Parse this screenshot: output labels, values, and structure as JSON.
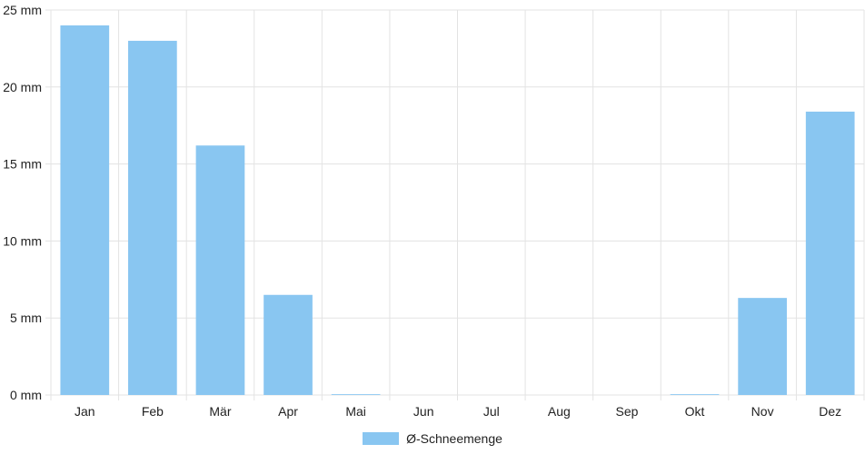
{
  "chart_data": {
    "type": "bar",
    "categories": [
      "Jan",
      "Feb",
      "Mär",
      "Apr",
      "Mai",
      "Jun",
      "Jul",
      "Aug",
      "Sep",
      "Okt",
      "Nov",
      "Dez"
    ],
    "series": [
      {
        "name": "Ø-Schneemenge",
        "values": [
          24.0,
          23.0,
          16.2,
          6.5,
          0.05,
          0,
          0,
          0,
          0,
          0.05,
          6.3,
          18.4
        ]
      }
    ],
    "ylim": [
      0,
      25
    ],
    "yticks": [
      "0 mm",
      "5 mm",
      "10 mm",
      "15 mm",
      "20 mm",
      "25 mm"
    ],
    "ytick_values": [
      0,
      5,
      10,
      15,
      20,
      25
    ],
    "grid": true,
    "legend_position": "bottom",
    "color": "#89c6f1"
  }
}
